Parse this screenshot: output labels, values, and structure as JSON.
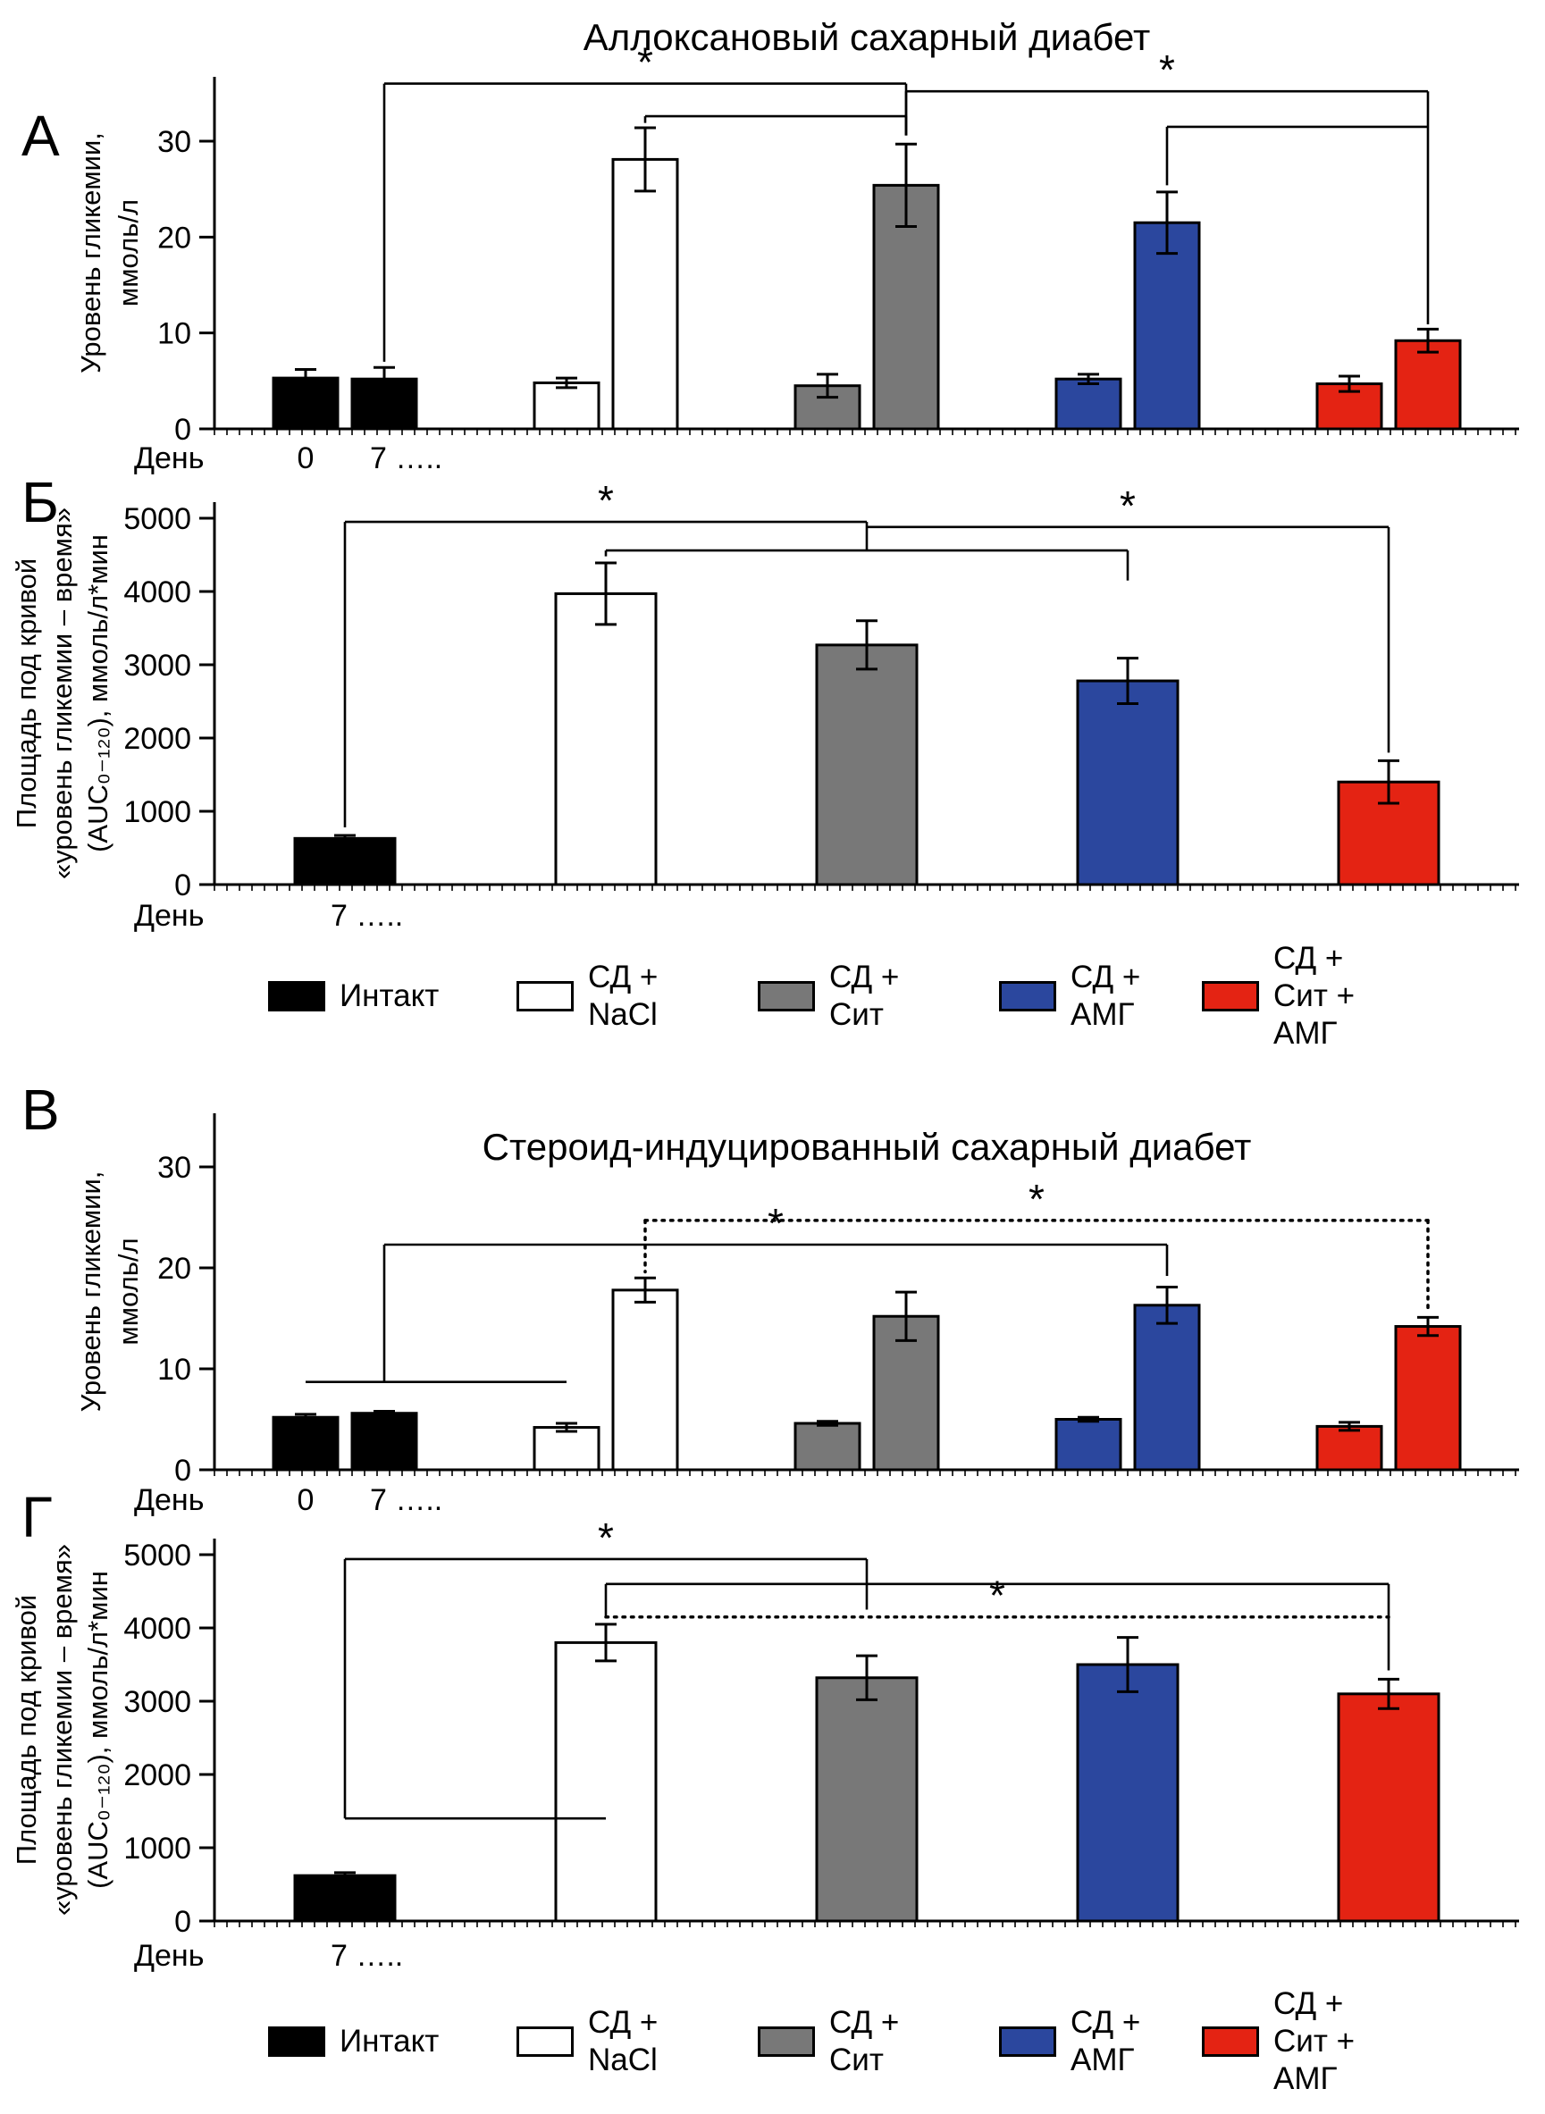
{
  "figure": {
    "panel_letters": [
      "А",
      "Б",
      "В",
      "Г"
    ]
  },
  "legend": {
    "items": [
      {
        "label_lines": [
          "Интакт"
        ],
        "color": "#000000"
      },
      {
        "label_lines": [
          "СД +",
          "NaCl"
        ],
        "color": "#ffffff"
      },
      {
        "label_lines": [
          "СД +",
          "Сит"
        ],
        "color": "#787878"
      },
      {
        "label_lines": [
          "СД +",
          "АМГ"
        ],
        "color": "#2b479e"
      },
      {
        "label_lines": [
          "СД +",
          "Сит +",
          "АМГ"
        ],
        "color": "#e42313"
      }
    ]
  },
  "chart_data": [
    {
      "panel": "А",
      "type": "bar",
      "title": "Аллоксановый сахарный диабет",
      "ylabel_lines": [
        "Уровень гликемии,",
        "ммоль/л"
      ],
      "xlabel": "День",
      "x_tick_labels": [
        "0",
        "7 ….."
      ],
      "ylim": [
        0,
        30
      ],
      "yticks": [
        0,
        10,
        20,
        30
      ],
      "groups": [
        "Интакт",
        "СД + NaCl",
        "СД + Сит",
        "СД + АМГ",
        "СД + Сит + АМГ"
      ],
      "bar_colors": [
        "#000000",
        "#ffffff",
        "#787878",
        "#2b479e",
        "#e42313"
      ],
      "series": [
        {
          "name": "День 0",
          "values": [
            5.3,
            4.8,
            4.5,
            5.2,
            4.7
          ],
          "errors": [
            0.9,
            0.5,
            1.2,
            0.5,
            0.8
          ]
        },
        {
          "name": "День 7",
          "values": [
            5.2,
            28.1,
            25.4,
            21.5,
            9.2
          ],
          "errors": [
            1.2,
            3.3,
            4.3,
            3.2,
            1.2
          ]
        }
      ],
      "significance_marker": "*",
      "brackets": [
        {
          "x1": [
            0,
            1
          ],
          "x2": [
            2,
            1
          ],
          "y": 36.0,
          "d1": 7.0,
          "d2": 30.6,
          "star": true,
          "dotted": false
        },
        {
          "x1": [
            1,
            1
          ],
          "x2": [
            2,
            1
          ],
          "y": 32.6,
          "d1": 31.9,
          "d2": 30.6,
          "star": false,
          "dotted": false
        },
        {
          "x1": [
            2,
            1
          ],
          "x2": [
            4,
            1
          ],
          "y": 35.2,
          "d1": 30.6,
          "d2": 10.9,
          "star": true,
          "dotted": false
        },
        {
          "x1": [
            3,
            1
          ],
          "x2": [
            4,
            1
          ],
          "y": 31.5,
          "d1": 25.4,
          "d2": null,
          "star": false,
          "dotted": false
        }
      ]
    },
    {
      "panel": "Б",
      "type": "bar",
      "title": "",
      "ylabel_lines": [
        "Площадь под кривой",
        "«уровень гликемии – время»",
        "(AUC₀₋₁₂₀), ммоль/л*мин"
      ],
      "xlabel": "День",
      "x_tick_labels": [
        "7 ….."
      ],
      "ylim": [
        0,
        5000
      ],
      "yticks": [
        0,
        1000,
        2000,
        3000,
        4000,
        5000
      ],
      "groups": [
        "Интакт",
        "СД + NaCl",
        "СД + Сит",
        "СД + АМГ",
        "СД + Сит + АМГ"
      ],
      "bar_colors": [
        "#000000",
        "#ffffff",
        "#787878",
        "#2b479e",
        "#e42313"
      ],
      "series": [
        {
          "name": "День 7",
          "values": [
            630,
            3970,
            3270,
            2780,
            1400
          ],
          "errors": [
            40,
            420,
            330,
            310,
            290
          ]
        }
      ],
      "significance_marker": "*",
      "brackets": [
        {
          "x1": [
            0,
            0
          ],
          "x2": [
            2,
            0
          ],
          "y": 4950,
          "d1": 780,
          "d2": 4560,
          "star": true,
          "dotted": false
        },
        {
          "x1": [
            1,
            0
          ],
          "x2": [
            2,
            0
          ],
          "y": 4560,
          "d1": 4480,
          "d2": null,
          "star": false,
          "dotted": false
        },
        {
          "x1": [
            2,
            0
          ],
          "x2": [
            4,
            0
          ],
          "y": 4880,
          "d1": null,
          "d2": 1800,
          "star": true,
          "dotted": false
        },
        {
          "x1": [
            2,
            0
          ],
          "x2": [
            3,
            0
          ],
          "y": 4560,
          "d1": null,
          "d2": 4150,
          "star": false,
          "dotted": false
        }
      ]
    },
    {
      "panel": "В",
      "type": "bar",
      "title": "Стероид-индуцированный сахарный диабет",
      "ylabel_lines": [
        "Уровень гликемии,",
        "ммоль/л"
      ],
      "xlabel": "День",
      "x_tick_labels": [
        "0",
        "7 ….."
      ],
      "ylim": [
        0,
        30
      ],
      "yticks": [
        0,
        10,
        20,
        30
      ],
      "groups": [
        "Интакт",
        "СД + NaCl",
        "СД + Сит",
        "СД + АМГ",
        "СД + Сит + АМГ"
      ],
      "bar_colors": [
        "#000000",
        "#ffffff",
        "#787878",
        "#2b479e",
        "#e42313"
      ],
      "series": [
        {
          "name": "День 0",
          "values": [
            5.2,
            4.2,
            4.6,
            5.0,
            4.3
          ],
          "errors": [
            0.3,
            0.4,
            0.2,
            0.2,
            0.4
          ]
        },
        {
          "name": "День 7",
          "values": [
            5.6,
            17.8,
            15.2,
            16.3,
            14.2
          ],
          "errors": [
            0.2,
            1.2,
            2.4,
            1.8,
            0.9
          ]
        }
      ],
      "significance_marker": "*",
      "brackets": [
        {
          "x1": [
            0,
            0
          ],
          "x2": [
            1,
            0
          ],
          "y": 8.7,
          "d1": null,
          "d2": null,
          "star": false,
          "dotted": false
        },
        {
          "x1": [
            0,
            1
          ],
          "x2": [
            3,
            1
          ],
          "y": 22.3,
          "d1": 8.7,
          "d2": 19.2,
          "star": true,
          "dotted": false
        },
        {
          "x1": [
            1,
            1
          ],
          "x2": [
            4,
            1
          ],
          "y": 24.7,
          "d1": 19.6,
          "d2": 15.7,
          "star": true,
          "dotted": true
        }
      ]
    },
    {
      "panel": "Г",
      "type": "bar",
      "title": "",
      "ylabel_lines": [
        "Площадь под кривой",
        "«уровень гликемии – время»",
        "(AUC₀₋₁₂₀), ммоль/л*мин"
      ],
      "xlabel": "День",
      "x_tick_labels": [
        "7 ….."
      ],
      "ylim": [
        0,
        5000
      ],
      "yticks": [
        0,
        1000,
        2000,
        3000,
        4000,
        5000
      ],
      "groups": [
        "Интакт",
        "СД + NaCl",
        "СД + Сит",
        "СД + АМГ",
        "СД + Сит + АМГ"
      ],
      "bar_colors": [
        "#000000",
        "#ffffff",
        "#787878",
        "#2b479e",
        "#e42313"
      ],
      "series": [
        {
          "name": "День 7",
          "values": [
            620,
            3800,
            3320,
            3500,
            3100
          ],
          "errors": [
            40,
            250,
            300,
            370,
            200
          ]
        }
      ],
      "significance_marker": "*",
      "brackets": [
        {
          "x1": [
            0,
            0
          ],
          "x2": [
            1,
            0
          ],
          "y": 1400,
          "d1": null,
          "d2": null,
          "star": false,
          "dotted": false
        },
        {
          "x1": [
            0,
            0
          ],
          "x2": [
            2,
            0
          ],
          "y": 4940,
          "d1": 1400,
          "d2": 4250,
          "star": true,
          "dotted": false
        },
        {
          "x1": [
            1,
            0
          ],
          "x2": [
            4,
            0
          ],
          "y": 4600,
          "d1": 4150,
          "d2": 3420,
          "star": false,
          "dotted": false
        },
        {
          "x1": [
            1,
            0
          ],
          "x2": [
            4,
            0
          ],
          "y": 4150,
          "d1": null,
          "d2": null,
          "star": true,
          "dotted": true
        }
      ]
    }
  ]
}
